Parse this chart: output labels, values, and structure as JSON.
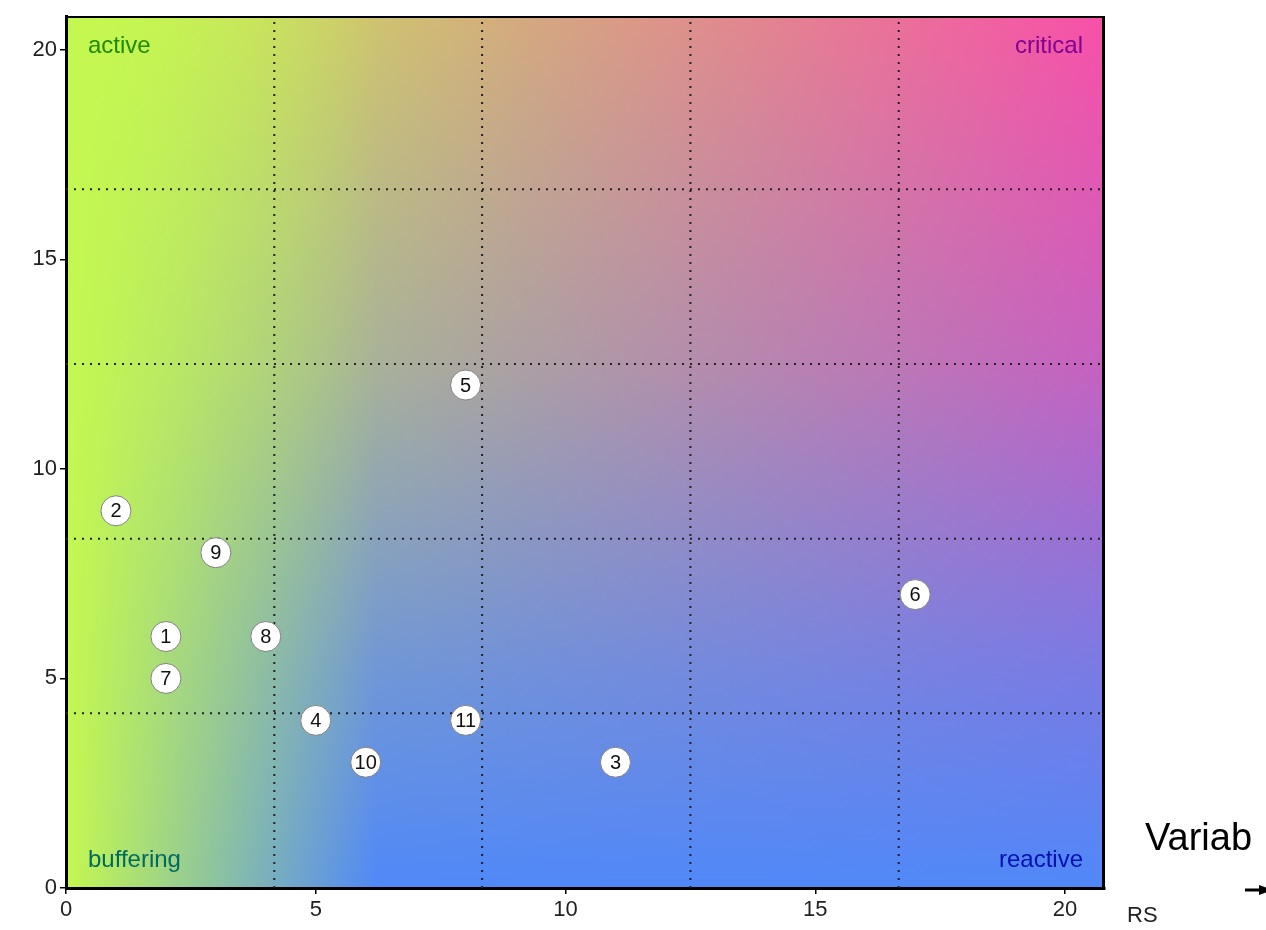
{
  "chart_data": {
    "type": "scatter",
    "xlabel": "RS",
    "x": [
      2,
      1,
      11,
      5,
      8,
      17,
      2,
      4,
      3,
      6,
      8
    ],
    "series": [
      {
        "color": "#ffffff",
        "values": [
          6,
          9,
          3,
          4,
          12,
          7,
          5,
          6,
          8,
          3,
          4
        ]
      }
    ],
    "marker": "circle",
    "xlim": [
      0,
      20.8
    ],
    "ylim": [
      0,
      20.8
    ],
    "xticks": [
      0,
      5,
      10,
      15,
      20,
      {
        "value": 4.17,
        "label": null
      },
      {
        "value": 8.33,
        "label": null
      },
      {
        "value": 12.5,
        "label": null
      },
      {
        "value": 16.67,
        "label": null
      }
    ],
    "yticks": [
      0,
      5,
      10,
      15,
      20,
      {
        "value": 4.17,
        "label": null
      },
      {
        "value": 8.33,
        "label": null
      },
      {
        "value": 12.5,
        "label": null
      },
      {
        "value": 16.67,
        "label": null
      }
    ],
    "grid": true,
    "legend": false,
    "annotations": [
      "active",
      "critical",
      "buffering",
      "reactive",
      "Variab",
      {
        "text": "1",
        "x": 2,
        "y": 6
      },
      {
        "text": "2",
        "x": 1,
        "y": 9
      },
      {
        "text": "3",
        "x": 11,
        "y": 3
      },
      {
        "text": "4",
        "x": 5,
        "y": 4
      },
      {
        "text": "5",
        "x": 8,
        "y": 12
      },
      {
        "text": "6",
        "x": 17,
        "y": 7
      },
      {
        "text": "7",
        "x": 2,
        "y": 5
      },
      {
        "text": "8",
        "x": 4,
        "y": 6
      },
      {
        "text": "9",
        "x": 3,
        "y": 8
      },
      {
        "text": "10",
        "x": 6,
        "y": 3
      },
      {
        "text": "11",
        "x": 8,
        "y": 4
      }
    ]
  }
}
